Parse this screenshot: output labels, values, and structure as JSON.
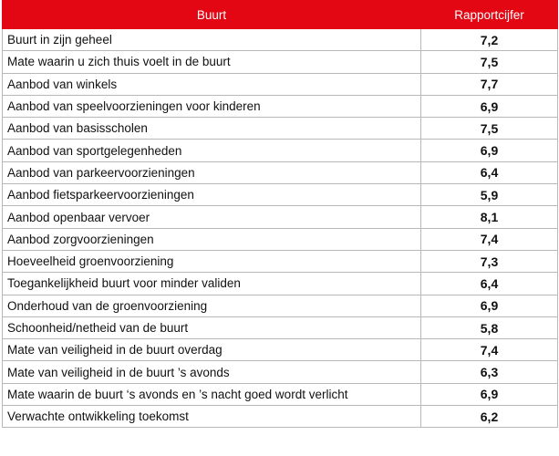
{
  "table": {
    "header": [
      "Buurt",
      "Rapportcijfer"
    ],
    "rows": [
      [
        "Buurt in zijn geheel",
        "7,2"
      ],
      [
        "Mate waarin u zich thuis voelt in de buurt",
        "7,5"
      ],
      [
        "Aanbod van winkels",
        "7,7"
      ],
      [
        "Aanbod van speelvoorzieningen voor kinderen",
        "6,9"
      ],
      [
        "Aanbod van basisscholen",
        "7,5"
      ],
      [
        "Aanbod van sportgelegenheden",
        "6,9"
      ],
      [
        "Aanbod van parkeervoorzieningen",
        "6,4"
      ],
      [
        "Aanbod fietsparkeervoorzieningen",
        "5,9"
      ],
      [
        "Aanbod openbaar vervoer",
        "8,1"
      ],
      [
        "Aanbod zorgvoorzieningen",
        "7,4"
      ],
      [
        "Hoeveelheid groenvoorziening",
        "7,3"
      ],
      [
        "Toegankelijkheid buurt voor minder validen",
        "6,4"
      ],
      [
        "Onderhoud van de groenvoorziening",
        "6,9"
      ],
      [
        "Schoonheid/netheid van de buurt",
        "5,8"
      ],
      [
        "Mate van veiligheid in de buurt overdag",
        "7,4"
      ],
      [
        "Mate van veiligheid in de buurt ’s avonds",
        "6,3"
      ],
      [
        "Mate waarin de buurt ‘s avonds en ’s nacht goed wordt verlicht",
        "6,9"
      ],
      [
        "Verwachte ontwikkeling toekomst",
        "6,2"
      ]
    ]
  }
}
